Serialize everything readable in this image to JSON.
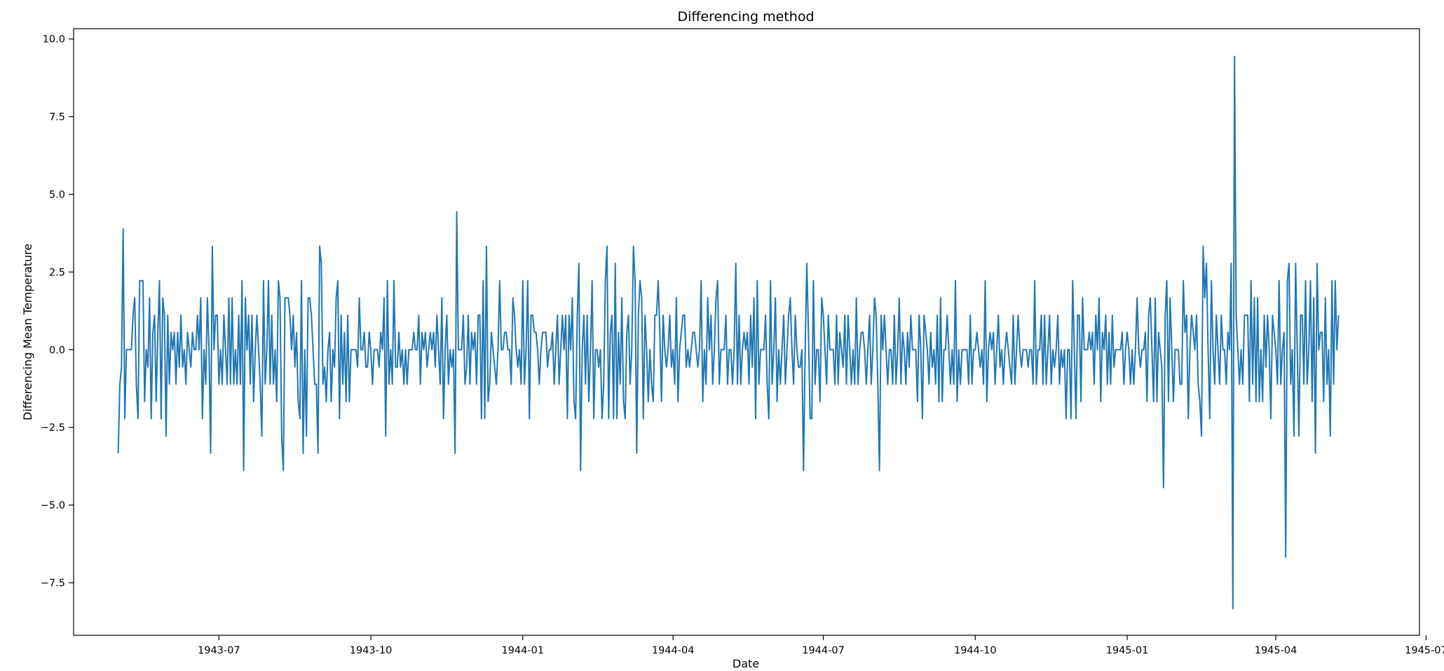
{
  "chart_data": {
    "type": "line",
    "title": "Differencing method",
    "xlabel": "Date",
    "ylabel": "Differencing Mean Temperature",
    "x_start": "1943-05-01",
    "x_end": "1945-05-31",
    "xlim": [
      "1943-04-04",
      "1945-06-27"
    ],
    "ylim": [
      -9.19,
      10.33
    ],
    "x_ticks": [
      "1943-07",
      "1943-10",
      "1944-01",
      "1944-04",
      "1944-07",
      "1944-10",
      "1945-01",
      "1945-04",
      "1945-07"
    ],
    "y_ticks": [
      10.0,
      7.5,
      5.0,
      2.5,
      0.0,
      -2.5,
      -5.0,
      -7.5
    ],
    "y_tick_labels": [
      "10.0",
      "7.5",
      "5.0",
      "2.5",
      "0.0",
      "−2.5",
      "−5.0",
      "−7.5"
    ],
    "grid": false,
    "legend": "none",
    "series": [
      {
        "color": "#1f77b4",
        "values": [
          -3.33,
          -1.11,
          -0.56,
          3.89,
          -2.22,
          0,
          0,
          0,
          0,
          1.11,
          1.67,
          -1.11,
          -2.22,
          2.22,
          2.22,
          2.22,
          -1.67,
          0,
          -0.56,
          1.67,
          -2.22,
          0.56,
          1.11,
          -1.67,
          0.56,
          2.22,
          -2.22,
          1.67,
          1.11,
          -2.78,
          1.11,
          -1.11,
          0.56,
          0,
          0.56,
          -1.11,
          0.56,
          -0.56,
          1.11,
          -0.56,
          0,
          -1.11,
          0.56,
          0,
          -0.56,
          0.56,
          0,
          0,
          1.11,
          0,
          1.67,
          -2.22,
          0,
          -1.11,
          1.67,
          0,
          -3.33,
          3.33,
          0,
          1.11,
          1.11,
          -1.11,
          0,
          -1.11,
          1.11,
          0,
          -1.11,
          1.67,
          -1.11,
          1.67,
          -1.11,
          0,
          -1.11,
          1.11,
          -1.11,
          2.22,
          -3.89,
          1.67,
          0,
          1.11,
          -1.11,
          1.11,
          -1.67,
          0,
          1.11,
          0,
          -1.11,
          -2.78,
          2.22,
          -1.11,
          0,
          2.22,
          -1.11,
          1.11,
          -1.11,
          0,
          -1.67,
          2.22,
          1.67,
          -2.78,
          -3.89,
          1.67,
          1.67,
          1.67,
          1.11,
          0,
          1.11,
          -0.56,
          0.56,
          -1.67,
          -2.22,
          2.22,
          -3.33,
          0,
          -2.78,
          1.67,
          1.67,
          1.11,
          0,
          -1.11,
          -1.11,
          -3.33,
          3.33,
          2.78,
          -1.11,
          -0.56,
          -1.67,
          0,
          0.56,
          -1.67,
          0,
          -0.56,
          1.67,
          2.22,
          -2.22,
          1.11,
          -1.11,
          0.56,
          -1.67,
          1.11,
          -1.67,
          0,
          0,
          0,
          0,
          -0.56,
          1.67,
          0,
          0,
          0.56,
          -0.56,
          -0.56,
          0.56,
          0,
          -1.11,
          0,
          0,
          0,
          -0.56,
          0.56,
          0,
          1.67,
          -2.78,
          2.22,
          -1.11,
          0,
          -1.11,
          2.22,
          -0.56,
          -0.56,
          0.56,
          -0.56,
          0,
          -1.11,
          0,
          -1.11,
          0,
          0,
          0,
          0.56,
          0,
          0,
          1.11,
          -1.11,
          0.56,
          0,
          0.56,
          -0.56,
          0,
          0.56,
          0,
          0.56,
          -0.56,
          1.11,
          0,
          -1.11,
          1.67,
          -2.22,
          0,
          1.11,
          -1.11,
          0,
          -0.56,
          0,
          -3.33,
          4.44,
          0,
          0,
          0,
          1.11,
          -1.11,
          -0.56,
          1.11,
          -1.11,
          0.56,
          0,
          0.56,
          -1.11,
          1.11,
          1.11,
          -2.22,
          2.22,
          -2.22,
          3.33,
          -1.67,
          -1.11,
          0.56,
          0,
          -0.56,
          -1.11,
          0,
          2.22,
          0,
          0,
          0.56,
          0.56,
          0,
          0,
          -1.11,
          1.67,
          1.11,
          0,
          -0.56,
          0,
          -1.11,
          2.22,
          -1.11,
          0,
          2.22,
          -2.22,
          1.11,
          1.11,
          0.56,
          0.56,
          0,
          -1.11,
          0,
          0.56,
          0.56,
          0.56,
          -0.56,
          0,
          0,
          0.56,
          -1.11,
          0,
          1.11,
          -1.11,
          0,
          1.11,
          0,
          1.11,
          -2.22,
          1.11,
          0,
          1.67,
          -1.67,
          -2.22,
          1.11,
          2.78,
          -3.89,
          0,
          1.11,
          -1.11,
          1.11,
          -1.67,
          0,
          2.22,
          -2.22,
          0,
          0,
          -0.56,
          0,
          -2.22,
          -1.11,
          2.22,
          3.33,
          -2.22,
          0.56,
          1.11,
          -2.22,
          2.78,
          -2.22,
          0.56,
          -1.11,
          1.67,
          -1.67,
          -2.22,
          0.56,
          1.11,
          -1.11,
          0,
          3.33,
          2.22,
          -3.33,
          1.11,
          2.22,
          1.67,
          -2.22,
          1.11,
          0,
          -1.67,
          0,
          -1.11,
          -1.67,
          1.11,
          1.11,
          2.22,
          0.56,
          -1.67,
          1.11,
          0,
          -0.56,
          0,
          1.11,
          -0.56,
          0,
          -1.11,
          1.67,
          -1.67,
          0,
          0.56,
          1.11,
          1.11,
          -0.56,
          0,
          -0.56,
          0,
          0.56,
          0.56,
          0,
          -0.56,
          0,
          2.22,
          -1.67,
          0,
          -1.11,
          1.67,
          0,
          1.11,
          -1.11,
          0,
          1.67,
          2.22,
          -1.11,
          0,
          0,
          0,
          1.11,
          -1.11,
          0,
          0,
          -1.11,
          0,
          2.78,
          -1.11,
          1.11,
          -1.11,
          0,
          0.56,
          0,
          0.56,
          -1.11,
          1.11,
          -0.56,
          1.67,
          -2.22,
          2.22,
          -1.11,
          0,
          0,
          0,
          1.11,
          -1.11,
          -2.22,
          2.22,
          -1.11,
          0,
          1.67,
          -1.67,
          0,
          -1.11,
          0,
          1.11,
          -1.11,
          0,
          1.11,
          1.67,
          0,
          -1.11,
          1.11,
          0,
          -0.56,
          -0.56,
          0,
          -3.89,
          0,
          2.78,
          0.56,
          -2.22,
          -2.22,
          2.22,
          -1.11,
          0,
          0,
          -1.67,
          1.67,
          1.11,
          0,
          -1.11,
          1.11,
          0,
          0,
          0,
          -1.11,
          1.11,
          -1.11,
          0.56,
          0,
          -0.56,
          1.11,
          -1.11,
          1.11,
          0,
          -1.11,
          0,
          -1.11,
          1.67,
          -1.11,
          0,
          0.56,
          0.56,
          0,
          -1.11,
          0,
          1.11,
          -1.11,
          0,
          1.67,
          1.11,
          -1.11,
          -3.89,
          1.11,
          0,
          1.11,
          0,
          -1.11,
          0,
          0,
          -1.11,
          1.11,
          -1.11,
          0,
          1.67,
          -1.11,
          0.56,
          0,
          -1.11,
          0.56,
          -0.56,
          1.11,
          0,
          0,
          0,
          -1.67,
          1.11,
          0,
          -2.22,
          1.11,
          0.56,
          0,
          -1.11,
          0.56,
          -0.56,
          0,
          -1.11,
          1.11,
          -1.67,
          1.67,
          -1.67,
          0,
          0,
          1.11,
          0,
          -1.11,
          0,
          -1.11,
          2.22,
          -1.67,
          0,
          -1.11,
          0,
          0,
          0,
          0,
          -1.11,
          1.11,
          -1.11,
          0,
          0,
          0.56,
          0,
          -0.56,
          0,
          -1.11,
          2.22,
          -1.67,
          0,
          0.56,
          0,
          0.56,
          -1.11,
          0,
          1.11,
          -0.56,
          0,
          -1.11,
          0,
          0.56,
          0,
          -0.56,
          -1.11,
          1.11,
          -1.11,
          0,
          1.11,
          0,
          -0.56,
          0,
          0,
          0,
          -0.56,
          0,
          0,
          -1.11,
          2.22,
          -1.11,
          0,
          0,
          1.11,
          -1.11,
          1.11,
          -1.11,
          0,
          1.11,
          -1.11,
          0,
          -0.56,
          0,
          1.11,
          -1.11,
          0,
          -0.56,
          0,
          -2.22,
          0,
          0,
          -2.22,
          2.22,
          0,
          -2.22,
          1.11,
          1.11,
          -1.67,
          1.67,
          0,
          0,
          0,
          0.56,
          0,
          0.56,
          -1.11,
          1.11,
          0,
          1.67,
          -1.67,
          0.56,
          0,
          1.11,
          -1.11,
          0.56,
          -1.11,
          1.11,
          -0.56,
          0,
          0,
          0,
          0,
          0.56,
          -1.11,
          0,
          0.56,
          0,
          -1.11,
          0,
          -1.11,
          0,
          1.67,
          0,
          -0.56,
          0,
          0,
          0.56,
          -1.67,
          1.11,
          1.67,
          0,
          -1.67,
          1.67,
          -1.67,
          0.56,
          0,
          -0.56,
          -4.44,
          1.11,
          2.22,
          -1.67,
          1.67,
          0,
          -1.67,
          0,
          0,
          0,
          -1.11,
          -1.11,
          2.22,
          0.56,
          1.11,
          -2.22,
          0,
          1.11,
          0.56,
          0,
          1.11,
          -1.11,
          -1.67,
          -2.78,
          3.33,
          1.67,
          2.78,
          0,
          -2.22,
          2.22,
          0,
          -1.11,
          1.11,
          0,
          -1.11,
          1.11,
          0,
          0,
          -1.11,
          0.56,
          0,
          2.78,
          -8.33,
          9.44,
          1.11,
          0,
          -1.11,
          0,
          -1.11,
          1.11,
          1.11,
          1.11,
          -1.67,
          2.22,
          -1.11,
          1.67,
          -1.67,
          1.67,
          -1.67,
          0,
          -1.67,
          1.11,
          -0.56,
          1.11,
          0,
          -2.22,
          1.11,
          0.56,
          0,
          -1.11,
          2.22,
          -1.11,
          0,
          0.56,
          -6.67,
          2.22,
          2.78,
          -1.11,
          0,
          -2.78,
          2.78,
          0,
          -2.78,
          1.11,
          1.11,
          -1.11,
          2.22,
          -1.11,
          0,
          2.22,
          -1.67,
          1.67,
          -3.33,
          2.78,
          0,
          0.56,
          0.56,
          -1.67,
          1.67,
          -1.11,
          0,
          -2.78,
          2.22,
          -1.11,
          2.22,
          0,
          1.11
        ]
      }
    ]
  }
}
